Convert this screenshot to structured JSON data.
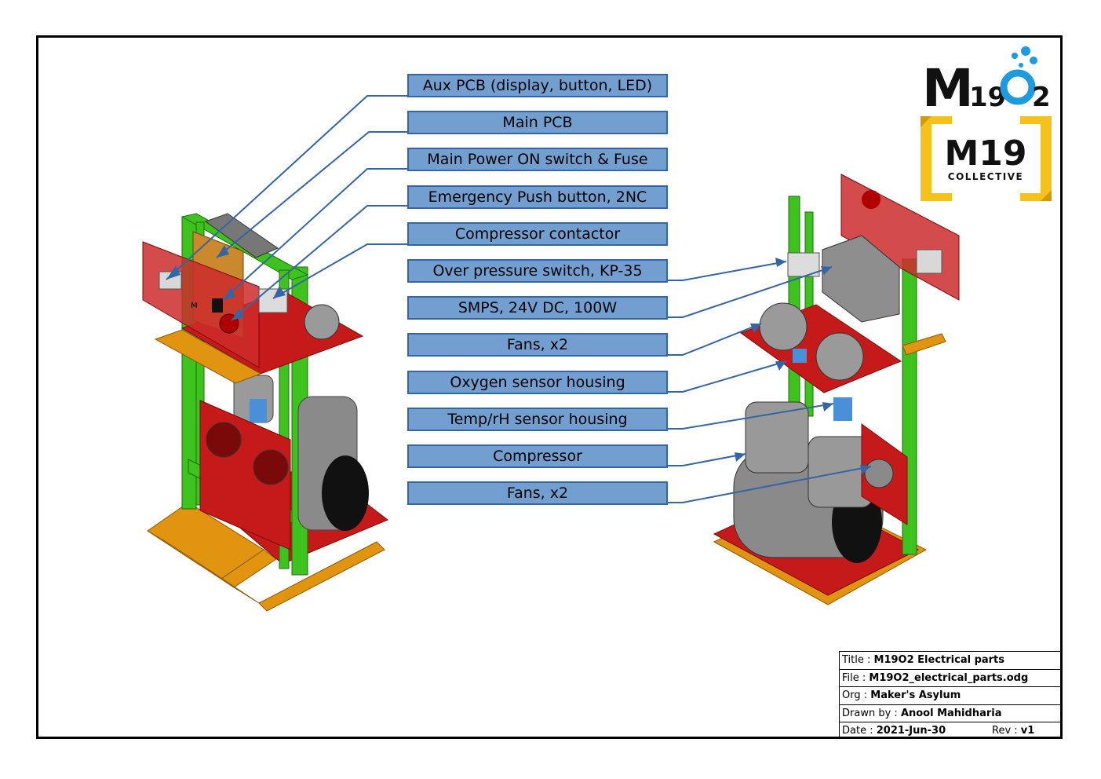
{
  "callouts": [
    "Aux PCB (display, button, LED)",
    "Main PCB",
    "Main Power ON switch & Fuse",
    "Emergency Push button, 2NC",
    "Compressor contactor",
    "Over pressure switch, KP-35",
    "SMPS, 24V DC, 100W",
    "Fans, x2",
    "Oxygen sensor housing",
    "Temp/rH sensor housing",
    "Compressor",
    "Fans, x2"
  ],
  "title_block": {
    "title_label": "Title :",
    "title_value": "M19O2 Electrical parts",
    "file_label": "File :",
    "file_value": "M19O2_electrical_parts.odg",
    "org_label": "Org :",
    "org_value": "Maker's Asylum",
    "drawn_label": "Drawn by :",
    "drawn_value": "Anool Mahidharia",
    "date_label": "Date :",
    "date_value": "2021-Jun-30",
    "rev_label": "Rev :",
    "rev_value": "v1"
  },
  "logos": {
    "m19o2_main": "M",
    "m19o2_sub": "19",
    "m19o2_o": "O",
    "m19o2_2": "2",
    "collective_main": "M19",
    "collective_sub": "COLLECTIVE"
  },
  "colors": {
    "callout_fill": "#729fcf",
    "callout_border": "#3465a4",
    "leader": "#3465a4",
    "frame_green": "#3ec21e",
    "frame_orange": "#e0940f",
    "panel_red": "#cc1f1f",
    "logo_blue": "#1e9be0",
    "logo_yellow": "#f5c21b"
  }
}
